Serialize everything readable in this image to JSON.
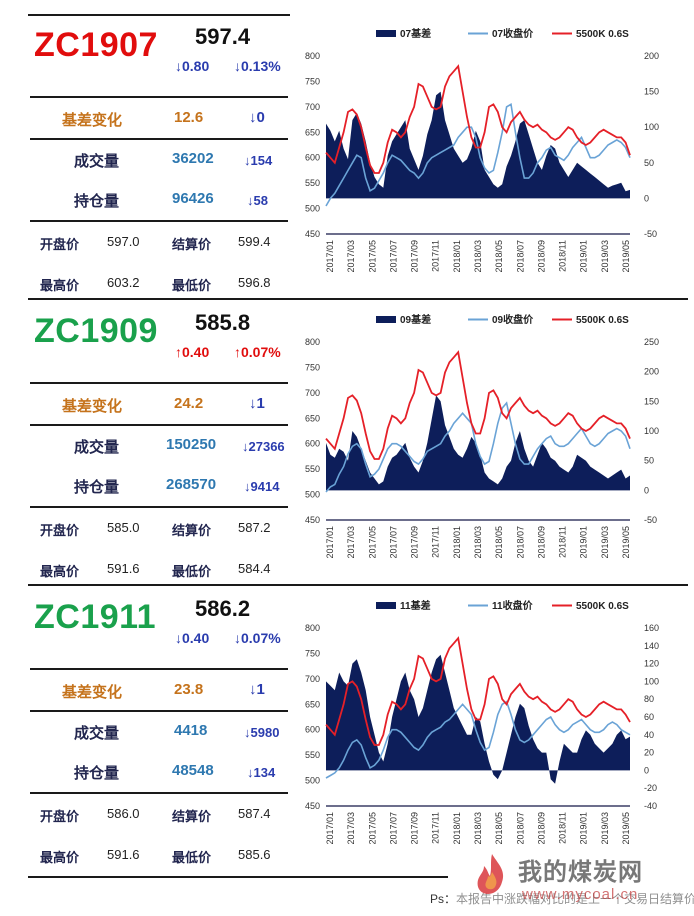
{
  "colors": {
    "red": "#e10d0d",
    "green": "#1aa14c",
    "orange": "#c5731c",
    "blue_num": "#2e78b0",
    "dark_blue": "#22264f",
    "navy_area": "#0d1e5a",
    "light_blue_line": "#6aa3d6",
    "red_line": "#e52028",
    "down_blue": "#2a3cae"
  },
  "x_tick_labels": [
    "2017/01",
    "2017/03",
    "2017/05",
    "2017/07",
    "2017/09",
    "2017/11",
    "2018/01",
    "2018/03",
    "2018/05",
    "2018/07",
    "2018/09",
    "2018/11",
    "2019/01",
    "2019/03",
    "2019/05"
  ],
  "panels": [
    {
      "code": "ZC1907",
      "code_color": "green_or_red:red",
      "price": "597.4",
      "change_abs": "↓0.80",
      "change_pct": "↓0.13%",
      "direction": "down",
      "basis_label": "基差变化",
      "basis_value": "12.6",
      "basis_change": "↓0",
      "volume_label": "成交量",
      "volume_value": "36202",
      "volume_change": "↓154",
      "oi_label": "持仓量",
      "oi_value": "96426",
      "oi_change": "↓58",
      "open_label": "开盘价",
      "open_value": "597.0",
      "settle_label": "结算价",
      "settle_value": "599.4",
      "high_label": "最高价",
      "high_value": "603.2",
      "low_label": "最低价",
      "low_value": "596.8",
      "chart_data": {
        "type": "area",
        "legend": [
          "07基差",
          "07收盘价",
          "5500K 0.6S"
        ],
        "left_axis": {
          "range": [
            450,
            800
          ],
          "ticks": [
            450,
            500,
            550,
            600,
            650,
            700,
            750,
            800
          ]
        },
        "right_axis": {
          "range": [
            -50,
            200
          ],
          "ticks": [
            -50,
            0,
            50,
            100,
            150,
            200
          ]
        },
        "series": [
          {
            "name": "07基差",
            "axis": "right",
            "kind": "area",
            "values": [
              105,
              95,
              80,
              95,
              70,
              55,
              110,
              120,
              105,
              80,
              50,
              30,
              20,
              15,
              60,
              80,
              90,
              100,
              110,
              70,
              55,
              40,
              60,
              90,
              110,
              145,
              150,
              110,
              90,
              70,
              60,
              50,
              55,
              70,
              95,
              80,
              40,
              30,
              20,
              15,
              20,
              45,
              60,
              80,
              105,
              110,
              90,
              70,
              50,
              40,
              60,
              75,
              70,
              50,
              40,
              30,
              40,
              50,
              45,
              40,
              35,
              30,
              25,
              20,
              15,
              18,
              20,
              22,
              10,
              12
            ]
          },
          {
            "name": "07收盘价",
            "axis": "left",
            "kind": "line",
            "values": [
              505,
              520,
              530,
              545,
              560,
              575,
              590,
              605,
              600,
              560,
              535,
              540,
              555,
              570,
              590,
              605,
              600,
              595,
              585,
              575,
              570,
              560,
              570,
              590,
              600,
              605,
              610,
              615,
              620,
              625,
              640,
              650,
              660,
              660,
              640,
              600,
              580,
              570,
              575,
              610,
              650,
              700,
              705,
              650,
              600,
              560,
              560,
              570,
              590,
              600,
              615,
              620,
              605,
              600,
              595,
              605,
              620,
              630,
              640,
              620,
              600,
              600,
              605,
              615,
              625,
              630,
              635,
              630,
              620,
              600
            ]
          },
          {
            "name": "5500K 0.6S",
            "axis": "left",
            "kind": "line",
            "values": [
              610,
              600,
              590,
              620,
              650,
              690,
              695,
              685,
              660,
              620,
              585,
              570,
              570,
              590,
              630,
              655,
              650,
              640,
              650,
              680,
              700,
              745,
              740,
              720,
              700,
              695,
              700,
              740,
              760,
              770,
              780,
              730,
              680,
              640,
              620,
              620,
              650,
              700,
              705,
              690,
              660,
              650,
              670,
              680,
              690,
              675,
              665,
              660,
              665,
              655,
              650,
              640,
              635,
              640,
              650,
              660,
              655,
              640,
              630,
              625,
              630,
              640,
              650,
              655,
              650,
              645,
              640,
              640,
              630,
              605
            ]
          }
        ]
      }
    },
    {
      "code": "ZC1909",
      "price": "585.8",
      "change_abs": "↑0.40",
      "change_pct": "↑0.07%",
      "direction": "up",
      "basis_label": "基差变化",
      "basis_value": "24.2",
      "basis_change": "↓1",
      "volume_label": "成交量",
      "volume_value": "150250",
      "volume_change": "↓27366",
      "oi_label": "持仓量",
      "oi_value": "268570",
      "oi_change": "↓9414",
      "open_label": "开盘价",
      "open_value": "585.0",
      "settle_label": "结算价",
      "settle_value": "587.2",
      "high_label": "最高价",
      "high_value": "591.6",
      "low_label": "最低价",
      "low_value": "584.4",
      "chart_data": {
        "type": "area",
        "legend": [
          "09基差",
          "09收盘价",
          "5500K 0.6S"
        ],
        "left_axis": {
          "range": [
            450,
            800
          ],
          "ticks": [
            450,
            500,
            550,
            600,
            650,
            700,
            750,
            800
          ]
        },
        "right_axis": {
          "range": [
            -50,
            250
          ],
          "ticks": [
            -50,
            0,
            50,
            100,
            150,
            200,
            250
          ]
        },
        "series": [
          {
            "name": "09基差",
            "axis": "right",
            "kind": "area",
            "values": [
              80,
              60,
              55,
              70,
              65,
              50,
              100,
              90,
              70,
              50,
              30,
              20,
              10,
              15,
              40,
              55,
              60,
              70,
              80,
              55,
              40,
              30,
              50,
              80,
              120,
              160,
              150,
              110,
              90,
              70,
              60,
              55,
              70,
              90,
              80,
              60,
              30,
              20,
              15,
              10,
              20,
              40,
              50,
              80,
              100,
              70,
              50,
              40,
              60,
              80,
              70,
              55,
              50,
              40,
              35,
              30,
              40,
              60,
              55,
              50,
              40,
              35,
              30,
              25,
              20,
              25,
              30,
              35,
              20,
              25
            ]
          },
          {
            "name": "09收盘价",
            "axis": "left",
            "kind": "line",
            "values": [
              505,
              515,
              520,
              540,
              555,
              580,
              595,
              600,
              590,
              560,
              535,
              540,
              550,
              570,
              590,
              600,
              600,
              595,
              585,
              575,
              565,
              560,
              570,
              585,
              590,
              595,
              600,
              615,
              625,
              640,
              650,
              660,
              650,
              640,
              600,
              575,
              560,
              565,
              600,
              640,
              670,
              680,
              640,
              600,
              570,
              560,
              560,
              575,
              590,
              600,
              610,
              615,
              600,
              595,
              595,
              600,
              610,
              620,
              630,
              615,
              600,
              595,
              600,
              610,
              620,
              625,
              630,
              625,
              615,
              590
            ]
          },
          {
            "name": "5500K 0.6S",
            "axis": "left",
            "kind": "line",
            "values": [
              610,
              600,
              590,
              620,
              650,
              690,
              695,
              685,
              660,
              620,
              585,
              570,
              570,
              590,
              630,
              655,
              650,
              640,
              650,
              680,
              700,
              745,
              740,
              720,
              700,
              695,
              700,
              740,
              760,
              770,
              780,
              730,
              680,
              640,
              620,
              620,
              650,
              700,
              705,
              690,
              660,
              650,
              670,
              680,
              690,
              675,
              665,
              660,
              665,
              655,
              650,
              640,
              635,
              640,
              650,
              660,
              655,
              640,
              630,
              625,
              630,
              640,
              650,
              655,
              650,
              645,
              640,
              640,
              630,
              610
            ]
          }
        ]
      }
    },
    {
      "code": "ZC1911",
      "price": "586.2",
      "change_abs": "↓0.40",
      "change_pct": "↓0.07%",
      "direction": "down",
      "basis_label": "基差变化",
      "basis_value": "23.8",
      "basis_change": "↓1",
      "volume_label": "成交量",
      "volume_value": "4418",
      "volume_change": "↓5980",
      "oi_label": "持仓量",
      "oi_value": "48548",
      "oi_change": "↓134",
      "open_label": "开盘价",
      "open_value": "586.0",
      "settle_label": "结算价",
      "settle_value": "587.4",
      "high_label": "最高价",
      "high_value": "591.6",
      "low_label": "最低价",
      "low_value": "585.6",
      "chart_data": {
        "type": "area",
        "legend": [
          "11基差",
          "11收盘价",
          "5500K 0.6S"
        ],
        "left_axis": {
          "range": [
            450,
            800
          ],
          "ticks": [
            450,
            500,
            550,
            600,
            650,
            700,
            750,
            800
          ]
        },
        "right_axis": {
          "range": [
            -40,
            160
          ],
          "ticks": [
            -40,
            -20,
            0,
            20,
            40,
            60,
            80,
            100,
            120,
            140,
            160
          ]
        },
        "series": [
          {
            "name": "11基差",
            "axis": "right",
            "kind": "area",
            "values": [
              100,
              95,
              90,
              110,
              100,
              95,
              120,
              125,
              110,
              90,
              60,
              40,
              20,
              10,
              30,
              60,
              80,
              100,
              110,
              90,
              80,
              60,
              70,
              90,
              110,
              125,
              130,
              110,
              90,
              70,
              60,
              50,
              40,
              40,
              60,
              55,
              30,
              10,
              -5,
              -10,
              0,
              20,
              40,
              60,
              75,
              70,
              50,
              35,
              25,
              20,
              20,
              -10,
              -15,
              10,
              30,
              25,
              20,
              20,
              35,
              45,
              40,
              30,
              25,
              20,
              25,
              30,
              40,
              45,
              35,
              38
            ]
          },
          {
            "name": "11收盘价",
            "axis": "left",
            "kind": "line",
            "values": [
              505,
              510,
              515,
              525,
              540,
              560,
              575,
              580,
              570,
              545,
              525,
              530,
              540,
              560,
              585,
              600,
              600,
              595,
              585,
              575,
              565,
              560,
              570,
              585,
              595,
              600,
              605,
              615,
              620,
              630,
              640,
              650,
              640,
              630,
              600,
              575,
              560,
              565,
              595,
              630,
              650,
              655,
              630,
              600,
              580,
              575,
              580,
              590,
              600,
              610,
              620,
              625,
              610,
              600,
              595,
              600,
              610,
              615,
              620,
              610,
              600,
              595,
              595,
              600,
              610,
              615,
              610,
              600,
              595,
              590
            ]
          },
          {
            "name": "5500K 0.6S",
            "axis": "left",
            "kind": "line",
            "values": [
              610,
              600,
              590,
              620,
              650,
              690,
              695,
              685,
              660,
              620,
              585,
              570,
              570,
              590,
              630,
              655,
              650,
              640,
              650,
              680,
              700,
              745,
              740,
              720,
              700,
              695,
              700,
              740,
              760,
              770,
              780,
              730,
              680,
              640,
              620,
              620,
              650,
              700,
              705,
              690,
              660,
              650,
              670,
              680,
              690,
              675,
              665,
              660,
              665,
              655,
              650,
              640,
              635,
              640,
              650,
              660,
              655,
              640,
              630,
              625,
              630,
              640,
              650,
              655,
              650,
              645,
              640,
              640,
              630,
              615
            ]
          }
        ]
      }
    }
  ],
  "footer": {
    "note_prefix": "Ps：",
    "note_text": "本报告中涨跌幅对比的是上一个交易日结算价"
  },
  "watermark": {
    "cn": "我的煤炭网",
    "url": "www.mycoal.cn"
  }
}
